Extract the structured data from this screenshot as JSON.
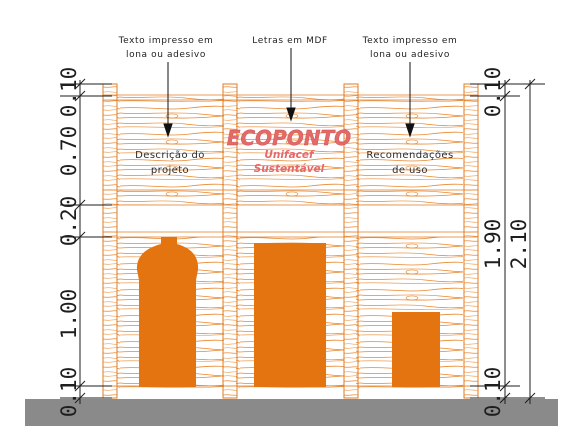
{
  "callouts": {
    "left": [
      "Texto impresso em",
      "lona ou adesivo"
    ],
    "center": [
      "Letras em MDF"
    ],
    "right": [
      "Texto impresso em",
      "lona ou adesivo"
    ]
  },
  "panels": {
    "left": [
      "Descrição do",
      "projeto"
    ],
    "right": [
      "Recomendações",
      "de uso"
    ]
  },
  "logo": {
    "title": "ECOPONTO",
    "line1": "Unifacef",
    "line2": "Sustentável"
  },
  "dimensions": {
    "left": [
      "0.10",
      "0.70",
      "0.20",
      "1.00",
      "0.10"
    ],
    "right_top": "0.10",
    "right_inner": "1.90",
    "right_total": "2.10",
    "right_bottom": "0.10"
  },
  "colors": {
    "wood": "#E07B20",
    "grain": "#E8872E",
    "bin": "#E47410",
    "ground": "#8A8A8A",
    "logo": "#E46A6A",
    "ink": "#1e1e1e"
  }
}
